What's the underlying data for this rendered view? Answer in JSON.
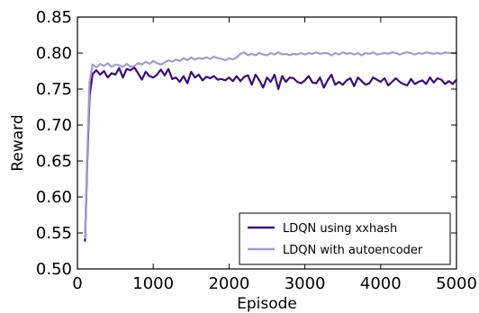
{
  "chart_data": {
    "type": "line",
    "xlabel": "Episode",
    "ylabel": "Reward",
    "xlim": [
      0,
      5000
    ],
    "ylim": [
      0.5,
      0.85
    ],
    "xticks": [
      0,
      1000,
      2000,
      3000,
      4000,
      5000
    ],
    "yticks": [
      0.5,
      0.55,
      0.6,
      0.65,
      0.7,
      0.75,
      0.8,
      0.85
    ],
    "grid": false,
    "legend_position": "lower-right",
    "series": [
      {
        "name": "LDQN using xxhash",
        "color": "#3d0a82",
        "x": [
          100,
          130,
          160,
          200,
          250,
          300,
          350,
          400,
          450,
          500,
          550,
          600,
          650,
          700,
          750,
          800,
          850,
          900,
          950,
          1000,
          1050,
          1100,
          1150,
          1200,
          1250,
          1300,
          1350,
          1400,
          1450,
          1500,
          1550,
          1600,
          1650,
          1700,
          1750,
          1800,
          1850,
          1900,
          1950,
          2000,
          2050,
          2100,
          2150,
          2200,
          2250,
          2300,
          2350,
          2400,
          2450,
          2500,
          2550,
          2600,
          2650,
          2700,
          2750,
          2800,
          2850,
          2900,
          2950,
          3000,
          3050,
          3100,
          3150,
          3200,
          3250,
          3300,
          3350,
          3400,
          3450,
          3500,
          3550,
          3600,
          3650,
          3700,
          3750,
          3800,
          3850,
          3900,
          3950,
          4000,
          4050,
          4100,
          4150,
          4200,
          4250,
          4300,
          4350,
          4400,
          4450,
          4500,
          4550,
          4600,
          4650,
          4700,
          4750,
          4800,
          4850,
          4900,
          4950,
          5000
        ],
        "y": [
          0.538,
          0.65,
          0.74,
          0.771,
          0.776,
          0.77,
          0.775,
          0.766,
          0.772,
          0.77,
          0.779,
          0.766,
          0.778,
          0.776,
          0.78,
          0.772,
          0.763,
          0.774,
          0.768,
          0.766,
          0.77,
          0.777,
          0.769,
          0.778,
          0.764,
          0.766,
          0.76,
          0.768,
          0.758,
          0.774,
          0.766,
          0.77,
          0.762,
          0.767,
          0.765,
          0.768,
          0.763,
          0.764,
          0.762,
          0.766,
          0.761,
          0.768,
          0.761,
          0.767,
          0.769,
          0.756,
          0.77,
          0.762,
          0.752,
          0.766,
          0.76,
          0.77,
          0.75,
          0.768,
          0.76,
          0.766,
          0.765,
          0.76,
          0.758,
          0.762,
          0.768,
          0.759,
          0.758,
          0.766,
          0.752,
          0.762,
          0.77,
          0.756,
          0.76,
          0.756,
          0.762,
          0.765,
          0.754,
          0.766,
          0.761,
          0.756,
          0.758,
          0.766,
          0.763,
          0.76,
          0.765,
          0.755,
          0.76,
          0.765,
          0.76,
          0.757,
          0.755,
          0.764,
          0.757,
          0.76,
          0.762,
          0.757,
          0.766,
          0.759,
          0.765,
          0.763,
          0.757,
          0.761,
          0.757,
          0.763
        ]
      },
      {
        "name": "LDQN with autoencoder",
        "color": "#a39bcf",
        "x": [
          100,
          130,
          160,
          200,
          250,
          300,
          350,
          400,
          450,
          500,
          550,
          600,
          650,
          700,
          750,
          800,
          850,
          900,
          950,
          1000,
          1050,
          1100,
          1150,
          1200,
          1250,
          1300,
          1350,
          1400,
          1450,
          1500,
          1550,
          1600,
          1650,
          1700,
          1750,
          1800,
          1850,
          1900,
          1950,
          2000,
          2050,
          2100,
          2150,
          2200,
          2250,
          2300,
          2350,
          2400,
          2450,
          2500,
          2550,
          2600,
          2650,
          2700,
          2750,
          2800,
          2850,
          2900,
          2950,
          3000,
          3050,
          3100,
          3150,
          3200,
          3250,
          3300,
          3350,
          3400,
          3450,
          3500,
          3550,
          3600,
          3650,
          3700,
          3750,
          3800,
          3850,
          3900,
          3950,
          4000,
          4050,
          4100,
          4150,
          4200,
          4250,
          4300,
          4350,
          4400,
          4450,
          4500,
          4550,
          4600,
          4650,
          4700,
          4750,
          4800,
          4850,
          4900,
          4950,
          5000
        ],
        "y": [
          0.542,
          0.66,
          0.76,
          0.784,
          0.78,
          0.785,
          0.782,
          0.786,
          0.781,
          0.784,
          0.783,
          0.781,
          0.785,
          0.781,
          0.782,
          0.786,
          0.784,
          0.788,
          0.785,
          0.789,
          0.786,
          0.784,
          0.787,
          0.79,
          0.788,
          0.791,
          0.789,
          0.793,
          0.79,
          0.794,
          0.791,
          0.793,
          0.792,
          0.794,
          0.792,
          0.795,
          0.793,
          0.792,
          0.79,
          0.793,
          0.791,
          0.794,
          0.799,
          0.801,
          0.797,
          0.799,
          0.797,
          0.8,
          0.798,
          0.797,
          0.8,
          0.798,
          0.801,
          0.798,
          0.799,
          0.797,
          0.799,
          0.798,
          0.8,
          0.798,
          0.8,
          0.799,
          0.801,
          0.799,
          0.8,
          0.8,
          0.797,
          0.8,
          0.798,
          0.801,
          0.799,
          0.8,
          0.798,
          0.8,
          0.797,
          0.8,
          0.799,
          0.801,
          0.798,
          0.799,
          0.8,
          0.799,
          0.801,
          0.8,
          0.798,
          0.8,
          0.801,
          0.8,
          0.798,
          0.8,
          0.799,
          0.801,
          0.8,
          0.799,
          0.8,
          0.799,
          0.801,
          0.8,
          0.8,
          0.8
        ]
      }
    ]
  }
}
